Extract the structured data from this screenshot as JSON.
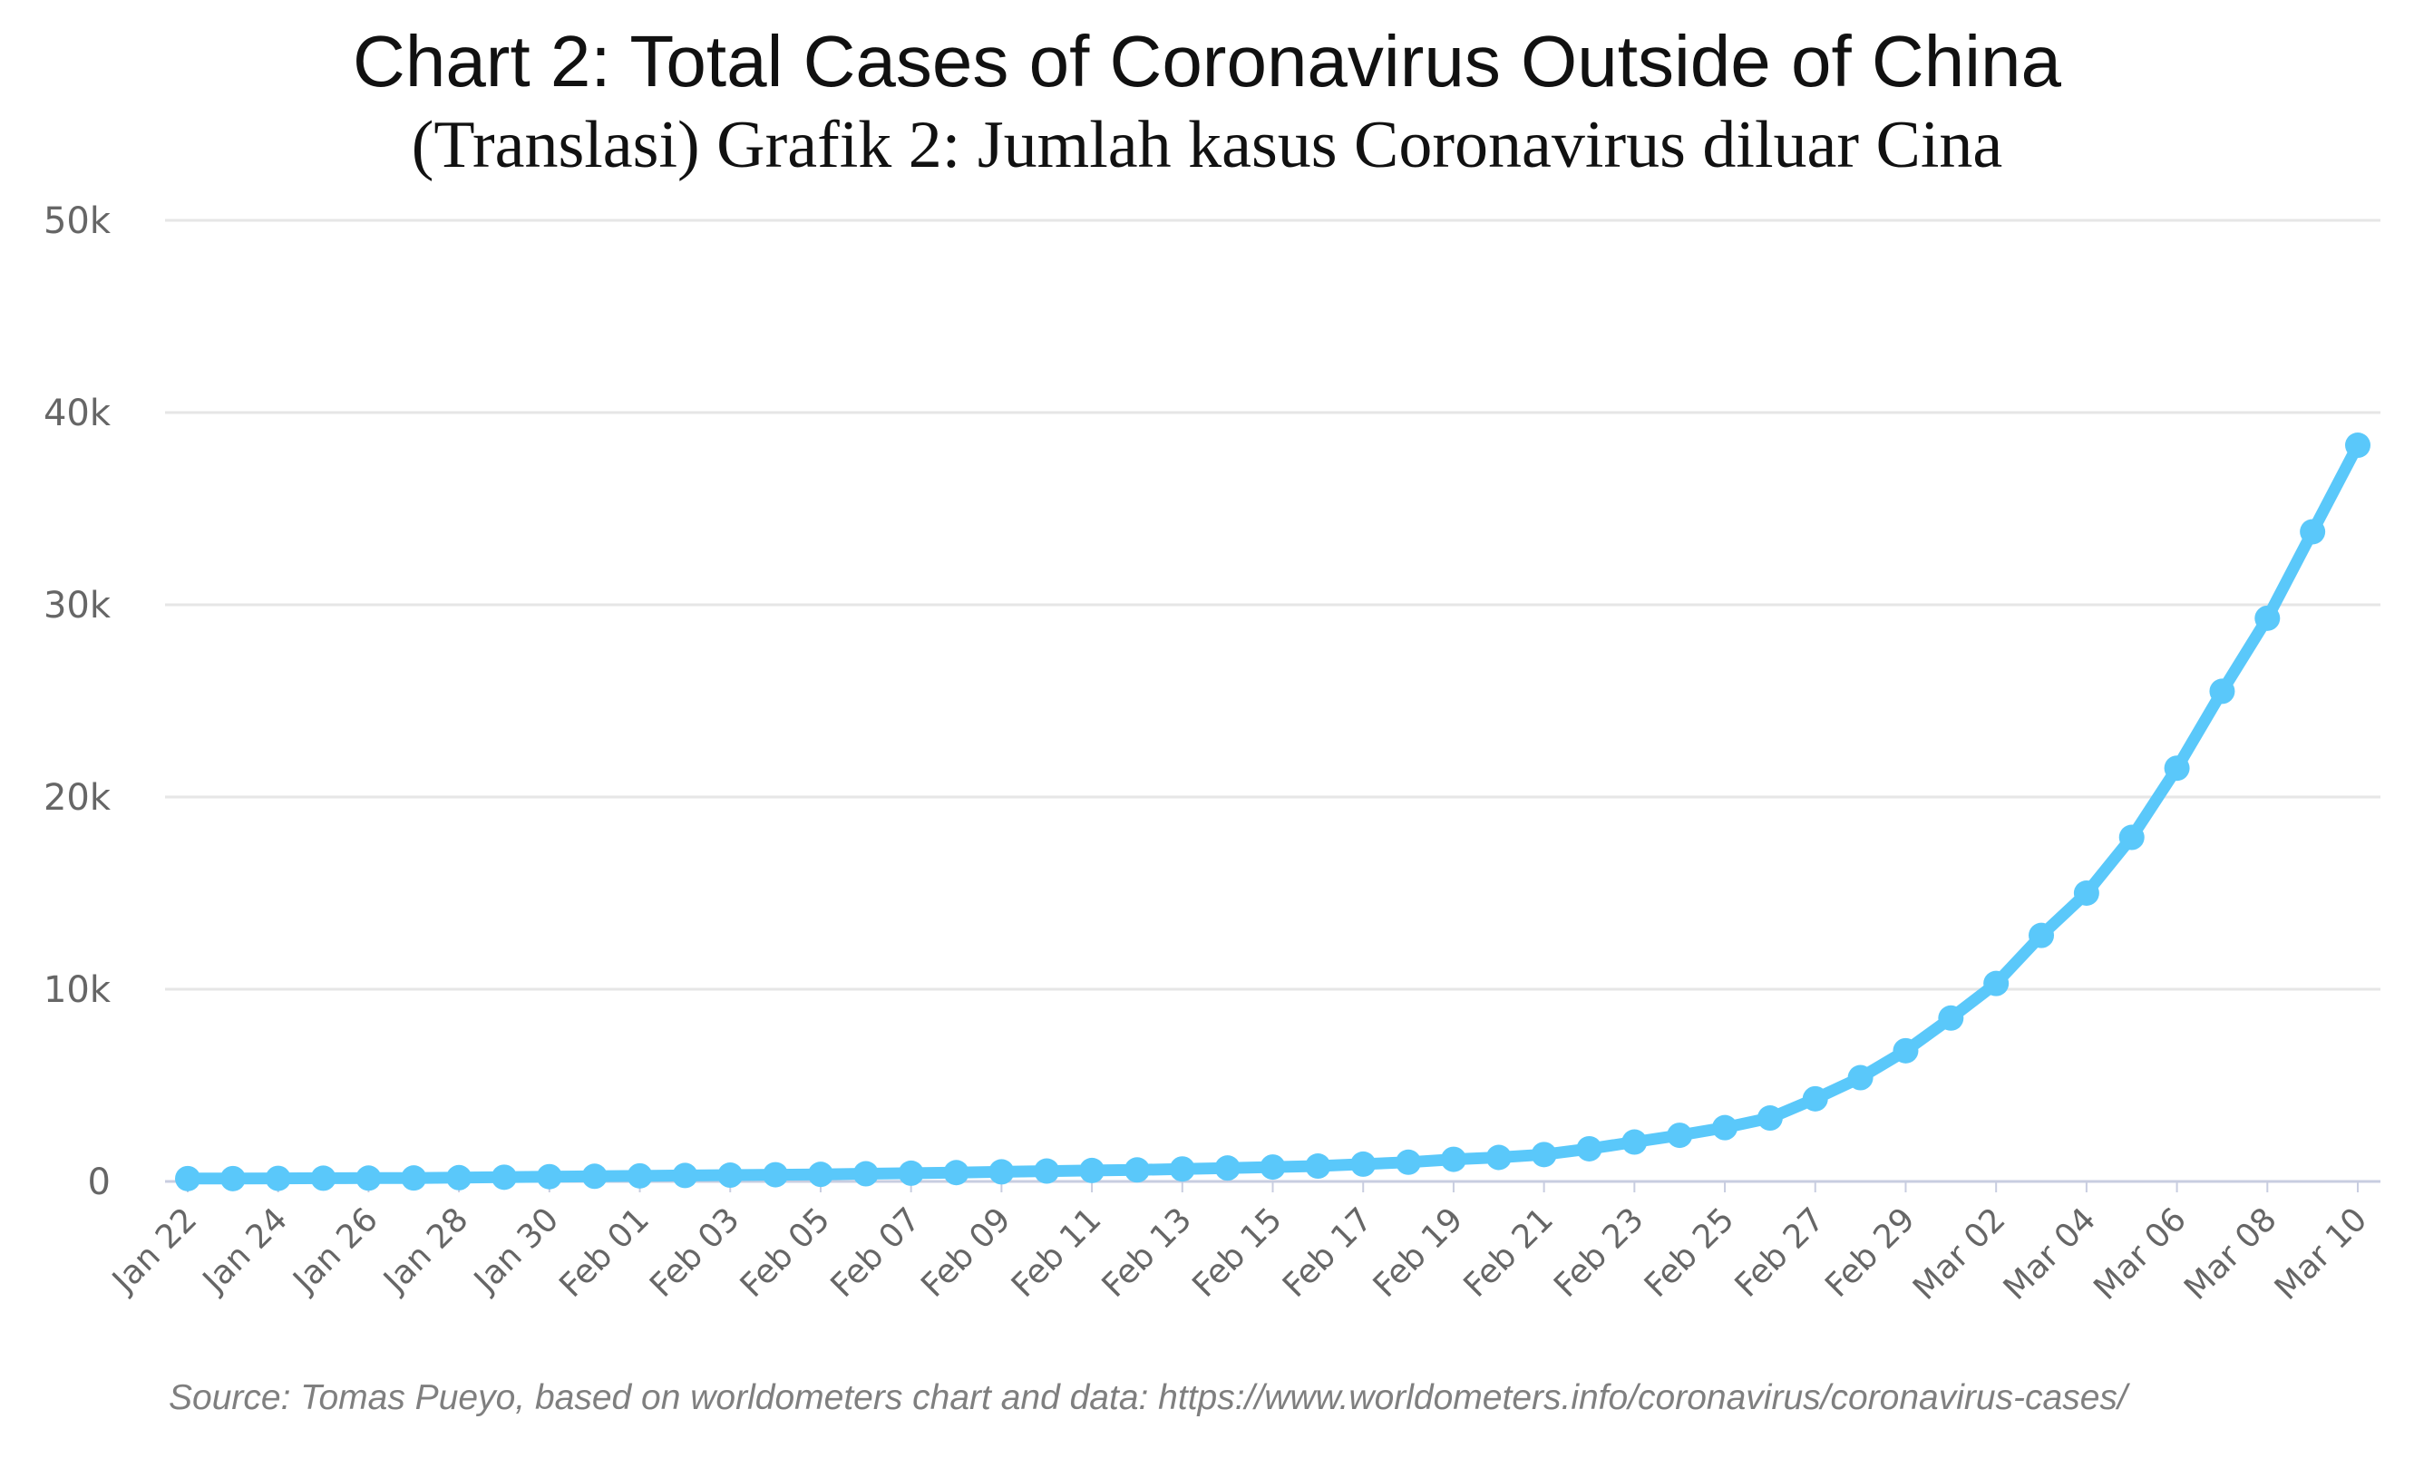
{
  "chart_data": {
    "type": "line",
    "title": "Chart 2: Total Cases of Coronavirus Outside of China",
    "subtitle": "(Translasi) Grafik 2: Jumlah kasus Coronavirus diluar Cina",
    "source": "Source: Tomas Pueyo, based on worldometers chart and data: https://www.worldometers.info/coronavirus/coronavirus-cases/",
    "xlabel": "",
    "ylabel": "",
    "ylim": [
      0,
      50000
    ],
    "yticks": [
      0,
      10000,
      20000,
      30000,
      40000,
      50000
    ],
    "ytick_labels": [
      "0",
      "10k",
      "20k",
      "30k",
      "40k",
      "50k"
    ],
    "x_tick_labels": [
      "Jan 22",
      "Jan 24",
      "Jan 26",
      "Jan 28",
      "Jan 30",
      "Feb 01",
      "Feb 03",
      "Feb 05",
      "Feb 07",
      "Feb 09",
      "Feb 11",
      "Feb 13",
      "Feb 15",
      "Feb 17",
      "Feb 19",
      "Feb 21",
      "Feb 23",
      "Feb 25",
      "Feb 27",
      "Feb 29",
      "Mar 02",
      "Mar 04",
      "Mar 06",
      "Mar 08",
      "Mar 10"
    ],
    "grid": true,
    "line_color": "#5ac8fa",
    "series": [
      {
        "x": [
          "Jan 22",
          "Jan 23",
          "Jan 24",
          "Jan 25",
          "Jan 26",
          "Jan 27",
          "Jan 28",
          "Jan 29",
          "Jan 30",
          "Jan 31",
          "Feb 01",
          "Feb 02",
          "Feb 03",
          "Feb 04",
          "Feb 05",
          "Feb 06",
          "Feb 07",
          "Feb 08",
          "Feb 09",
          "Feb 10",
          "Feb 11",
          "Feb 12",
          "Feb 13",
          "Feb 14",
          "Feb 15",
          "Feb 16",
          "Feb 17",
          "Feb 18",
          "Feb 19",
          "Feb 20",
          "Feb 21",
          "Feb 22",
          "Feb 23",
          "Feb 24",
          "Feb 25",
          "Feb 26",
          "Feb 27",
          "Feb 28",
          "Feb 29",
          "Mar 01",
          "Mar 02",
          "Mar 03",
          "Mar 04",
          "Mar 05",
          "Mar 06",
          "Mar 07",
          "Mar 08",
          "Mar 09",
          "Mar 10"
        ],
        "values": [
          150,
          150,
          160,
          170,
          175,
          180,
          200,
          220,
          250,
          270,
          290,
          310,
          330,
          350,
          370,
          400,
          430,
          460,
          500,
          540,
          570,
          600,
          650,
          700,
          750,
          800,
          900,
          1000,
          1150,
          1250,
          1400,
          1700,
          2050,
          2400,
          2800,
          3300,
          4300,
          5400,
          6800,
          8500,
          10300,
          12800,
          15000,
          17900,
          21500,
          25500,
          29300,
          33800,
          38300
        ]
      }
    ]
  }
}
